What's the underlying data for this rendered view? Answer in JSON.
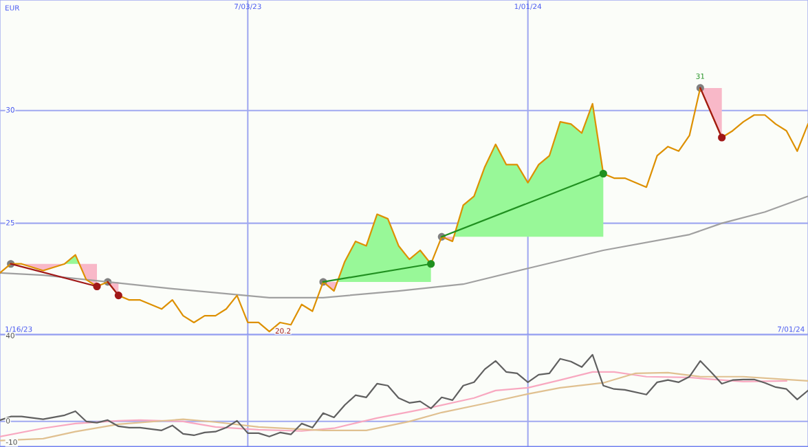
{
  "chart_data": [
    {
      "type": "line",
      "ylabel": "EUR",
      "xlim": [
        "2023-01-23",
        "2024-07-01"
      ],
      "ylim": [
        20.05,
        34.9
      ],
      "xticks": [
        {
          "value": "2023-07-03",
          "label": "7/03/23"
        },
        {
          "value": "2024-01-01",
          "label": "1/01/24"
        }
      ],
      "yticks": [
        25,
        30
      ],
      "grid": true,
      "annotations": [
        {
          "text": "20.2",
          "x": "2023-07-17",
          "y": 20.2
        },
        {
          "text": "31",
          "x": "2024-04-22",
          "y": 31
        },
        "1/16/23",
        "7/01/24"
      ],
      "series": [
        {
          "type": "line",
          "color": "#a0a0a0",
          "x": [
            "2023-01-23",
            "2023-02-20",
            "2023-04-03",
            "2023-05-15",
            "2023-07-17",
            "2023-08-21",
            "2023-10-09",
            "2023-11-20",
            "2024-01-01",
            "2024-02-19",
            "2024-04-15",
            "2024-05-06",
            "2024-06-03",
            "2024-07-01"
          ],
          "values": [
            22.8,
            22.7,
            22.4,
            22.1,
            21.7,
            21.7,
            22.0,
            22.3,
            23.0,
            23.8,
            24.5,
            25.0,
            25.5,
            26.2
          ]
        },
        {
          "type": "line",
          "color": "#dd9000",
          "x": [
            "2023-01-23",
            "2023-01-30",
            "2023-02-06",
            "2023-02-20",
            "2023-03-06",
            "2023-03-13",
            "2023-03-20",
            "2023-03-27",
            "2023-04-03",
            "2023-04-10",
            "2023-04-17",
            "2023-04-24",
            "2023-05-08",
            "2023-05-15",
            "2023-05-22",
            "2023-05-29",
            "2023-06-05",
            "2023-06-12",
            "2023-06-19",
            "2023-06-26",
            "2023-07-03",
            "2023-07-10",
            "2023-07-17",
            "2023-07-24",
            "2023-07-31",
            "2023-08-07",
            "2023-08-14",
            "2023-08-21",
            "2023-08-28",
            "2023-09-04",
            "2023-09-11",
            "2023-09-18",
            "2023-09-25",
            "2023-10-02",
            "2023-10-09",
            "2023-10-16",
            "2023-10-23",
            "2023-10-30",
            "2023-11-06",
            "2023-11-13",
            "2023-11-20",
            "2023-11-27",
            "2023-12-04",
            "2023-12-11",
            "2023-12-18",
            "2023-12-25",
            "2024-01-01",
            "2024-01-08",
            "2024-01-15",
            "2024-01-22",
            "2024-01-29",
            "2024-02-05",
            "2024-02-12",
            "2024-02-19",
            "2024-02-26",
            "2024-03-04",
            "2024-03-18",
            "2024-03-25",
            "2024-04-01",
            "2024-04-08",
            "2024-04-15",
            "2024-04-22",
            "2024-05-06",
            "2024-05-13",
            "2024-05-20",
            "2024-05-27",
            "2024-06-03",
            "2024-06-10",
            "2024-06-17",
            "2024-06-24",
            "2024-07-01"
          ],
          "values": [
            22.8,
            23.2,
            23.2,
            22.9,
            23.2,
            23.6,
            22.5,
            22.2,
            22.4,
            21.8,
            21.6,
            21.6,
            21.2,
            21.6,
            20.9,
            20.6,
            20.9,
            20.9,
            21.2,
            21.8,
            20.6,
            20.6,
            20.2,
            20.6,
            20.5,
            21.4,
            21.1,
            22.4,
            22.0,
            23.3,
            24.2,
            24.0,
            25.4,
            25.2,
            24.0,
            23.4,
            23.8,
            23.2,
            24.4,
            24.2,
            25.8,
            26.2,
            27.5,
            28.5,
            27.6,
            27.6,
            26.8,
            27.6,
            28.0,
            29.5,
            29.4,
            29.0,
            30.3,
            27.2,
            27.0,
            27.0,
            26.6,
            28.0,
            28.4,
            28.2,
            28.9,
            31.0,
            28.8,
            29.1,
            29.5,
            29.8,
            29.8,
            29.4,
            29.1,
            28.2,
            29.4
          ]
        },
        {
          "type": "line",
          "color": "#a01818",
          "x": [
            "2023-01-30",
            "2023-03-27"
          ],
          "values": [
            23.2,
            22.2
          ]
        },
        {
          "type": "line",
          "color": "#a01818",
          "x": [
            "2023-04-03",
            "2023-04-10"
          ],
          "values": [
            22.4,
            21.8
          ]
        },
        {
          "type": "line",
          "color": "#209020",
          "x": [
            "2023-08-21",
            "2023-10-30"
          ],
          "values": [
            22.4,
            23.2
          ]
        },
        {
          "type": "line",
          "color": "#209020",
          "x": [
            "2023-11-06",
            "2024-02-19"
          ],
          "values": [
            24.4,
            27.2
          ]
        },
        {
          "type": "line",
          "color": "#a01818",
          "x": [
            "2024-04-22",
            "2024-05-06"
          ],
          "values": [
            31.0,
            28.8
          ]
        },
        {
          "type": "scatter",
          "color": "#808080",
          "marker": "circle",
          "x": [
            "2023-01-30",
            "2023-04-03",
            "2023-08-21",
            "2023-11-06",
            "2024-04-22"
          ],
          "values": [
            23.2,
            22.4,
            22.4,
            24.4,
            31.0
          ]
        },
        {
          "type": "scatter",
          "colors": [
            "#a01818",
            "#a01818",
            "#209020",
            "#209020",
            "#a01818"
          ],
          "marker": "circle",
          "x": [
            "2023-03-27",
            "2023-04-10",
            "2023-10-30",
            "2024-02-19",
            "2024-05-06"
          ],
          "values": [
            22.2,
            21.8,
            23.2,
            27.2,
            28.8
          ]
        }
      ]
    },
    {
      "type": "line",
      "tick_labels": "y",
      "xlim": [
        "2023-01-23",
        "2024-07-01"
      ],
      "ylim": [
        -12,
        40.6
      ],
      "xticks": [
        {
          "value": "2023-07-03",
          "label": null
        },
        {
          "value": "2024-01-01",
          "label": null
        }
      ],
      "yticks": [
        -10,
        0,
        40
      ],
      "grid": "x",
      "ref_lines": [
        {
          "axis": "y",
          "value": 0,
          "color": "#a0a8f0"
        }
      ],
      "series": [
        {
          "type": "line",
          "color": "#f8a8c0",
          "x": [
            "2023-01-23",
            "2023-02-20",
            "2023-03-13",
            "2023-04-10",
            "2023-04-24",
            "2023-05-22",
            "2023-06-12",
            "2023-07-10",
            "2023-08-07",
            "2023-08-28",
            "2023-09-25",
            "2023-10-16",
            "2023-10-30",
            "2023-11-27",
            "2023-12-11",
            "2024-01-01",
            "2024-01-22",
            "2024-02-12",
            "2024-02-26",
            "2024-03-18",
            "2024-04-15",
            "2024-05-06",
            "2024-05-20",
            "2024-06-17"
          ],
          "values": [
            -7.1,
            -3.2,
            -1.0,
            0.3,
            0.6,
            0,
            -2.6,
            -3.9,
            -4.5,
            -3.2,
            1.6,
            4.5,
            6.5,
            11.0,
            14.5,
            15.8,
            19.4,
            23.2,
            23.2,
            21.0,
            20.6,
            19.4,
            18.7,
            19.0
          ]
        },
        {
          "type": "line",
          "color": "#e0c090",
          "x": [
            "2023-01-23",
            "2023-02-20",
            "2023-03-13",
            "2023-04-10",
            "2023-05-22",
            "2023-06-12",
            "2023-07-10",
            "2023-08-21",
            "2023-09-18",
            "2023-10-16",
            "2023-11-06",
            "2023-12-04",
            "2024-01-01",
            "2024-01-22",
            "2024-02-19",
            "2024-03-11",
            "2024-04-01",
            "2024-04-22",
            "2024-05-20",
            "2024-06-10",
            "2024-07-01"
          ],
          "values": [
            -9.0,
            -8.1,
            -4.8,
            -1.3,
            1.0,
            -0.3,
            -2.6,
            -4.2,
            -4.2,
            0,
            4.2,
            8.4,
            12.9,
            15.8,
            18.1,
            22.6,
            22.9,
            21.0,
            21.0,
            20.0,
            19.0
          ]
        },
        {
          "type": "line",
          "color": "#606060",
          "x": [
            "2023-01-23",
            "2023-01-30",
            "2023-02-06",
            "2023-02-20",
            "2023-03-06",
            "2023-03-13",
            "2023-03-20",
            "2023-03-27",
            "2023-04-03",
            "2023-04-10",
            "2023-04-17",
            "2023-04-24",
            "2023-05-08",
            "2023-05-15",
            "2023-05-22",
            "2023-05-29",
            "2023-06-05",
            "2023-06-12",
            "2023-06-19",
            "2023-06-26",
            "2023-07-03",
            "2023-07-10",
            "2023-07-17",
            "2023-07-24",
            "2023-07-31",
            "2023-08-07",
            "2023-08-14",
            "2023-08-21",
            "2023-08-28",
            "2023-09-04",
            "2023-09-11",
            "2023-09-18",
            "2023-09-25",
            "2023-10-02",
            "2023-10-09",
            "2023-10-16",
            "2023-10-23",
            "2023-10-30",
            "2023-11-06",
            "2023-11-13",
            "2023-11-20",
            "2023-11-27",
            "2023-12-04",
            "2023-12-11",
            "2023-12-18",
            "2023-12-25",
            "2024-01-01",
            "2024-01-08",
            "2024-01-15",
            "2024-01-22",
            "2024-01-29",
            "2024-02-05",
            "2024-02-12",
            "2024-02-19",
            "2024-02-26",
            "2024-03-04",
            "2024-03-18",
            "2024-03-25",
            "2024-04-01",
            "2024-04-08",
            "2024-04-15",
            "2024-04-22",
            "2024-04-29",
            "2024-05-06",
            "2024-05-13",
            "2024-05-20",
            "2024-05-27",
            "2024-06-03",
            "2024-06-10",
            "2024-06-17",
            "2024-06-24",
            "2024-07-01"
          ],
          "values": [
            0.6,
            2.3,
            2.3,
            1.0,
            2.9,
            4.8,
            0,
            -0.6,
            0.6,
            -2.3,
            -2.9,
            -2.9,
            -4.2,
            -1.9,
            -5.8,
            -6.5,
            -5.2,
            -4.8,
            -2.9,
            0.3,
            -5.5,
            -5.5,
            -7.1,
            -5.2,
            -6.1,
            -1.0,
            -2.9,
            3.9,
            1.9,
            7.7,
            12.3,
            11.3,
            17.7,
            16.8,
            11.0,
            8.7,
            9.4,
            6.1,
            11.3,
            10.0,
            16.8,
            18.4,
            24.5,
            28.4,
            23.2,
            22.6,
            18.4,
            21.9,
            22.6,
            29.4,
            28.1,
            25.5,
            31.3,
            16.8,
            15.2,
            14.8,
            12.6,
            18.4,
            19.4,
            18.4,
            21.0,
            28.4,
            23.2,
            17.7,
            19.4,
            19.7,
            19.7,
            18.1,
            16.1,
            15.2,
            10.3,
            14.5
          ]
        }
      ]
    }
  ]
}
